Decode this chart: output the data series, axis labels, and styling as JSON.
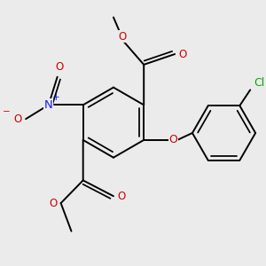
{
  "bg_color": "#ebebeb",
  "bond_color": "#000000",
  "bond_width": 1.4,
  "atom_colors": {
    "O": "#cc0000",
    "N": "#1a1aff",
    "Cl": "#00aa00"
  },
  "font_size": 8.5
}
